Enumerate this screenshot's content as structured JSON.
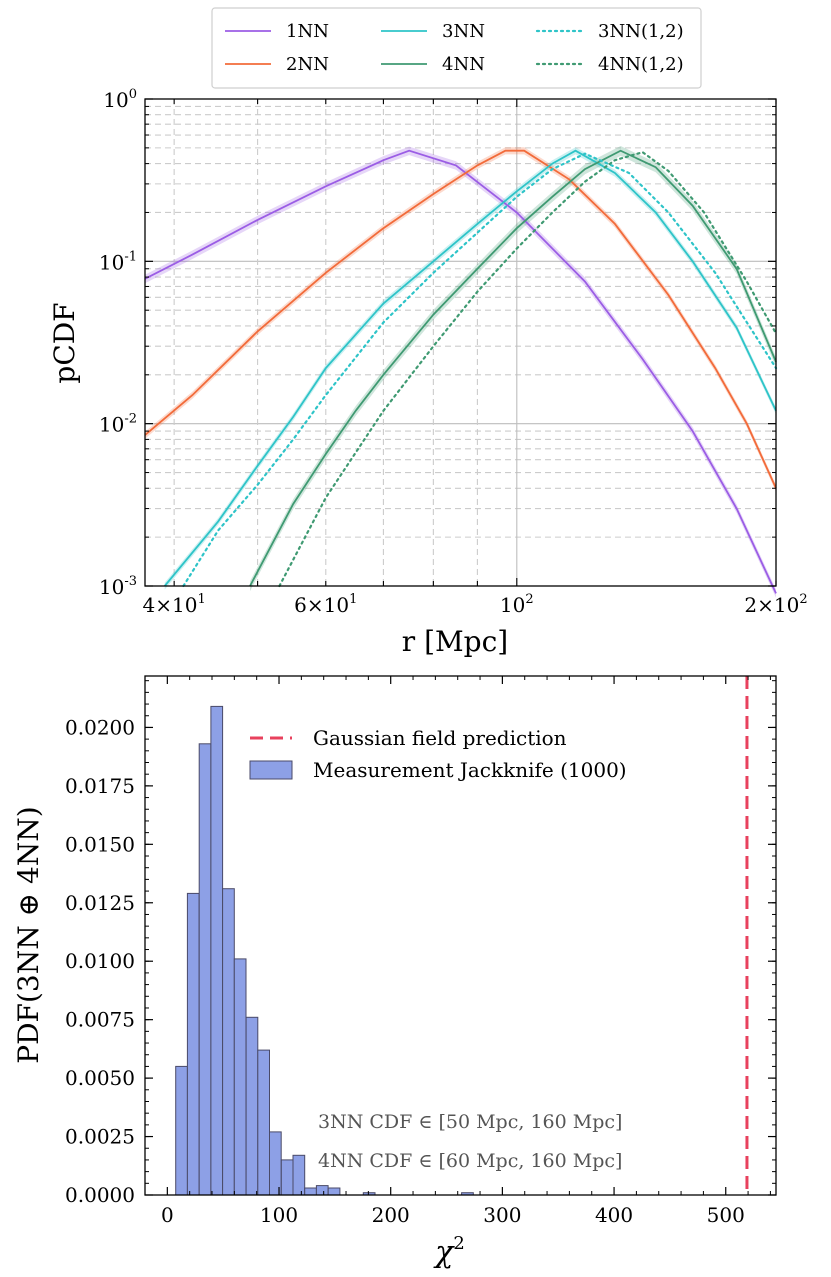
{
  "chart_data": [
    {
      "type": "line",
      "title": "",
      "xlabel": "r [Mpc]",
      "ylabel": "pCDF",
      "xscale": "log",
      "yscale": "log",
      "xlim": [
        37,
        200
      ],
      "ylim": [
        0.001,
        1
      ],
      "grid": true,
      "legend_position": "top-outside",
      "x_ticks": [
        {
          "value": 40,
          "label": "4×10",
          "exp": "1"
        },
        {
          "value": 60,
          "label": "6×10",
          "exp": "1"
        },
        {
          "value": 100,
          "label": "10",
          "exp": "2"
        },
        {
          "value": 200,
          "label": "2×10",
          "exp": "2"
        }
      ],
      "y_ticks": [
        {
          "value": 1,
          "label": "10",
          "exp": "0"
        },
        {
          "value": 0.1,
          "label": "10",
          "exp": "-1"
        },
        {
          "value": 0.01,
          "label": "10",
          "exp": "-2"
        },
        {
          "value": 0.001,
          "label": "10",
          "exp": "-3"
        }
      ],
      "series": [
        {
          "name": "1NN",
          "color": "#9b5de5",
          "style": "solid",
          "x": [
            37,
            42,
            50,
            60,
            70,
            75,
            85,
            100,
            120,
            140,
            160,
            180,
            200
          ],
          "y": [
            0.078,
            0.11,
            0.18,
            0.29,
            0.42,
            0.48,
            0.39,
            0.2,
            0.075,
            0.025,
            0.009,
            0.003,
            0.0009
          ],
          "band": 0.06
        },
        {
          "name": "2NN",
          "color": "#f26b3a",
          "style": "solid",
          "x": [
            37,
            42,
            50,
            60,
            70,
            80,
            90,
            97,
            102,
            115,
            130,
            150,
            170,
            185,
            200
          ],
          "y": [
            0.0085,
            0.015,
            0.037,
            0.085,
            0.16,
            0.26,
            0.39,
            0.48,
            0.48,
            0.32,
            0.17,
            0.062,
            0.022,
            0.01,
            0.004
          ],
          "band": 0.05
        },
        {
          "name": "3NN",
          "color": "#2ec4c8",
          "style": "solid",
          "x": [
            39,
            45,
            50,
            55,
            60,
            70,
            80,
            90,
            100,
            110,
            117,
            130,
            145,
            160,
            180,
            200
          ],
          "y": [
            0.001,
            0.0025,
            0.0055,
            0.011,
            0.022,
            0.055,
            0.1,
            0.17,
            0.27,
            0.4,
            0.48,
            0.35,
            0.2,
            0.1,
            0.039,
            0.012
          ],
          "band": 0.05
        },
        {
          "name": "4NN",
          "color": "#3f9a72",
          "style": "solid",
          "x": [
            49,
            55,
            60,
            65,
            70,
            80,
            90,
            100,
            110,
            120,
            132,
            145,
            160,
            180,
            200
          ],
          "y": [
            0.001,
            0.0032,
            0.0065,
            0.012,
            0.02,
            0.047,
            0.09,
            0.16,
            0.25,
            0.37,
            0.48,
            0.38,
            0.22,
            0.09,
            0.024
          ],
          "band": 0.07
        },
        {
          "name": "3NN(1,2)",
          "color": "#2ec4c8",
          "style": "dotted",
          "x": [
            41,
            45,
            50,
            55,
            60,
            70,
            80,
            90,
            100,
            110,
            120,
            135,
            150,
            170,
            200
          ],
          "y": [
            0.001,
            0.0022,
            0.0042,
            0.008,
            0.015,
            0.042,
            0.085,
            0.15,
            0.25,
            0.37,
            0.46,
            0.35,
            0.2,
            0.085,
            0.022
          ]
        },
        {
          "name": "4NN(1,2)",
          "color": "#3f9a72",
          "style": "dotted",
          "x": [
            53,
            60,
            70,
            80,
            90,
            100,
            110,
            120,
            130,
            140,
            150,
            165,
            185,
            200
          ],
          "y": [
            0.001,
            0.0035,
            0.012,
            0.03,
            0.065,
            0.12,
            0.2,
            0.31,
            0.42,
            0.47,
            0.36,
            0.2,
            0.075,
            0.036
          ]
        }
      ]
    },
    {
      "type": "bar",
      "title": "",
      "xlabel": "χ",
      "xlabel_exp": "2",
      "ylabel": "PDF(3NN ⊕ 4NN)",
      "xlim": [
        -20,
        545
      ],
      "ylim": [
        0,
        0.0222
      ],
      "bin_width": 10.5,
      "x_ticks": [
        0,
        100,
        200,
        300,
        400,
        500
      ],
      "y_ticks": [
        "0.0000",
        "0.0025",
        "0.0050",
        "0.0075",
        "0.0100",
        "0.0125",
        "0.0150",
        "0.0175",
        "0.0200"
      ],
      "y_tick_values": [
        0,
        0.0025,
        0.005,
        0.0075,
        0.01,
        0.0125,
        0.015,
        0.0175,
        0.02
      ],
      "bar_color": "#8da0e6",
      "bar_edge": "#4a4a68",
      "bins_left": [
        7.5,
        18,
        28.5,
        39,
        49.5,
        60,
        70.5,
        81,
        91.5,
        102,
        112.5,
        123,
        133.5,
        144,
        175.5,
        263.5
      ],
      "values": [
        0.0055,
        0.0129,
        0.0193,
        0.0209,
        0.0131,
        0.0101,
        0.0076,
        0.0062,
        0.0027,
        0.0015,
        0.0017,
        0.0003,
        0.0004,
        0.0003,
        0.0001,
        0.0001
      ],
      "vline": {
        "x": 519,
        "color": "#e8415d",
        "label": "Gaussian field prediction"
      },
      "legend": [
        {
          "label": "Gaussian field prediction",
          "kind": "dashed-line"
        },
        {
          "label": "Measurement Jackknife (1000)",
          "kind": "patch"
        }
      ],
      "annotations": [
        "3NN CDF ∈ [50 Mpc, 160 Mpc]",
        "4NN CDF ∈ [60 Mpc, 160 Mpc]"
      ]
    }
  ]
}
